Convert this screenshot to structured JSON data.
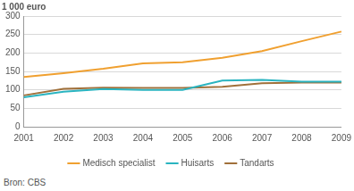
{
  "chart_data": {
    "type": "line",
    "ylabel": "1 000 euro",
    "source": "Bron: CBS",
    "categories": [
      "2001",
      "2002",
      "2003",
      "2004",
      "2005",
      "2006",
      "2007",
      "2008",
      "2009"
    ],
    "series": [
      {
        "name": "Medisch specialist",
        "color": "#f0a030",
        "values": [
          135,
          145,
          157,
          172,
          175,
          187,
          205,
          232,
          258
        ]
      },
      {
        "name": "Huisarts",
        "color": "#2ab4c0",
        "values": [
          80,
          95,
          102,
          100,
          100,
          125,
          127,
          122,
          122
        ]
      },
      {
        "name": "Tandarts",
        "color": "#a0703a",
        "values": [
          85,
          103,
          106,
          105,
          105,
          108,
          118,
          120,
          120
        ]
      }
    ],
    "ylim": [
      0,
      300
    ],
    "yticks": [
      0,
      50,
      100,
      150,
      200,
      250,
      300
    ],
    "grid": true,
    "legend": "bottom"
  }
}
